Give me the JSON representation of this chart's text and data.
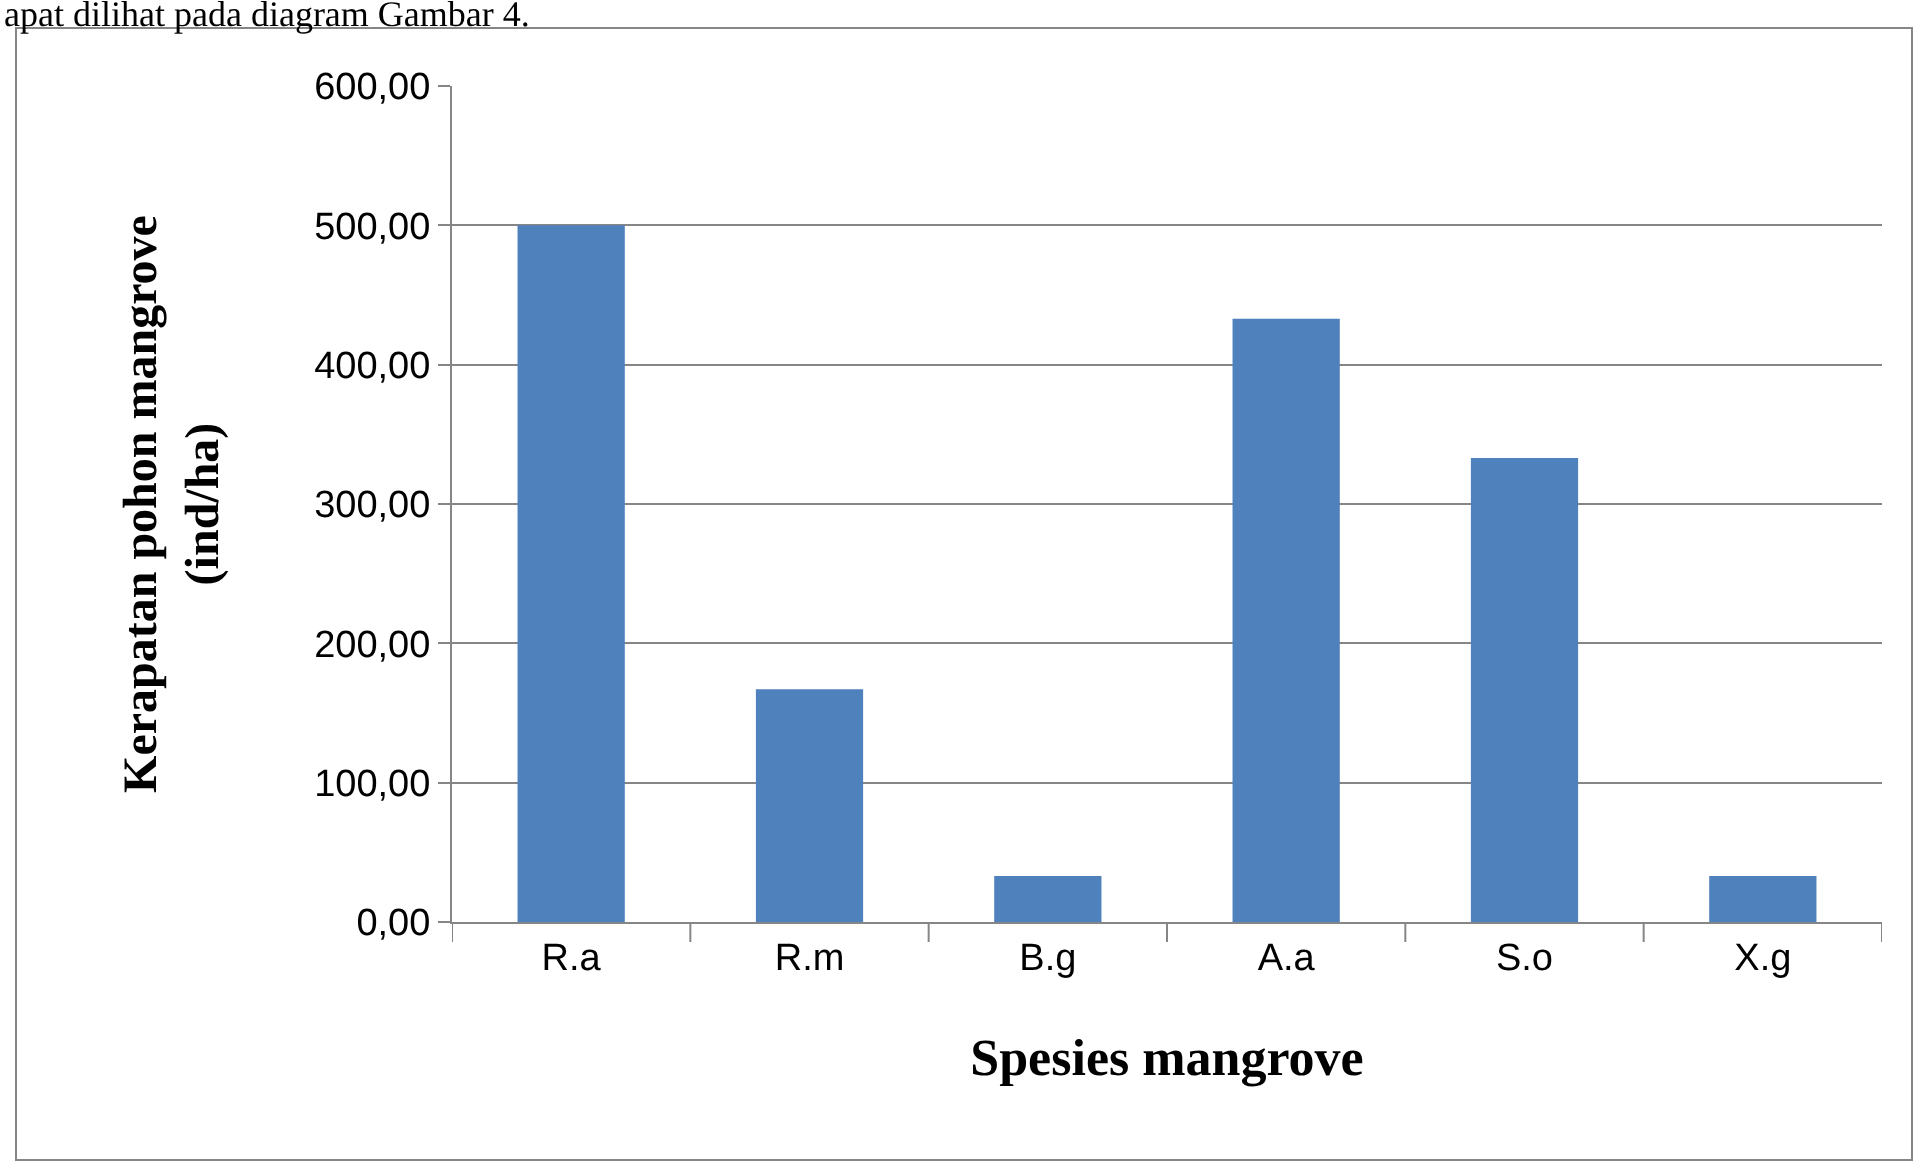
{
  "chart_data": {
    "type": "bar",
    "xlabel": "Spesies mangrove",
    "ylabel": "Kerapatan pohon mangrove\n(ind/ha)",
    "categories": [
      "R.a",
      "R.m",
      "B.g",
      "A.a",
      "S.o",
      "X.g"
    ],
    "values": [
      500,
      167,
      33,
      433,
      333,
      33
    ],
    "color": "#4f81bd",
    "ylim": [
      0,
      600
    ],
    "yticks": [
      {
        "value": 0,
        "label": "0,00"
      },
      {
        "value": 100,
        "label": "100,00"
      },
      {
        "value": 200,
        "label": "200,00"
      },
      {
        "value": 300,
        "label": "300,00"
      },
      {
        "value": 400,
        "label": "400,00"
      },
      {
        "value": 500,
        "label": "500,00"
      },
      {
        "value": 600,
        "label": "600,00"
      }
    ],
    "grid": "y",
    "annotations": [
      "apat dilihat pada diagram Gambar 4."
    ]
  }
}
